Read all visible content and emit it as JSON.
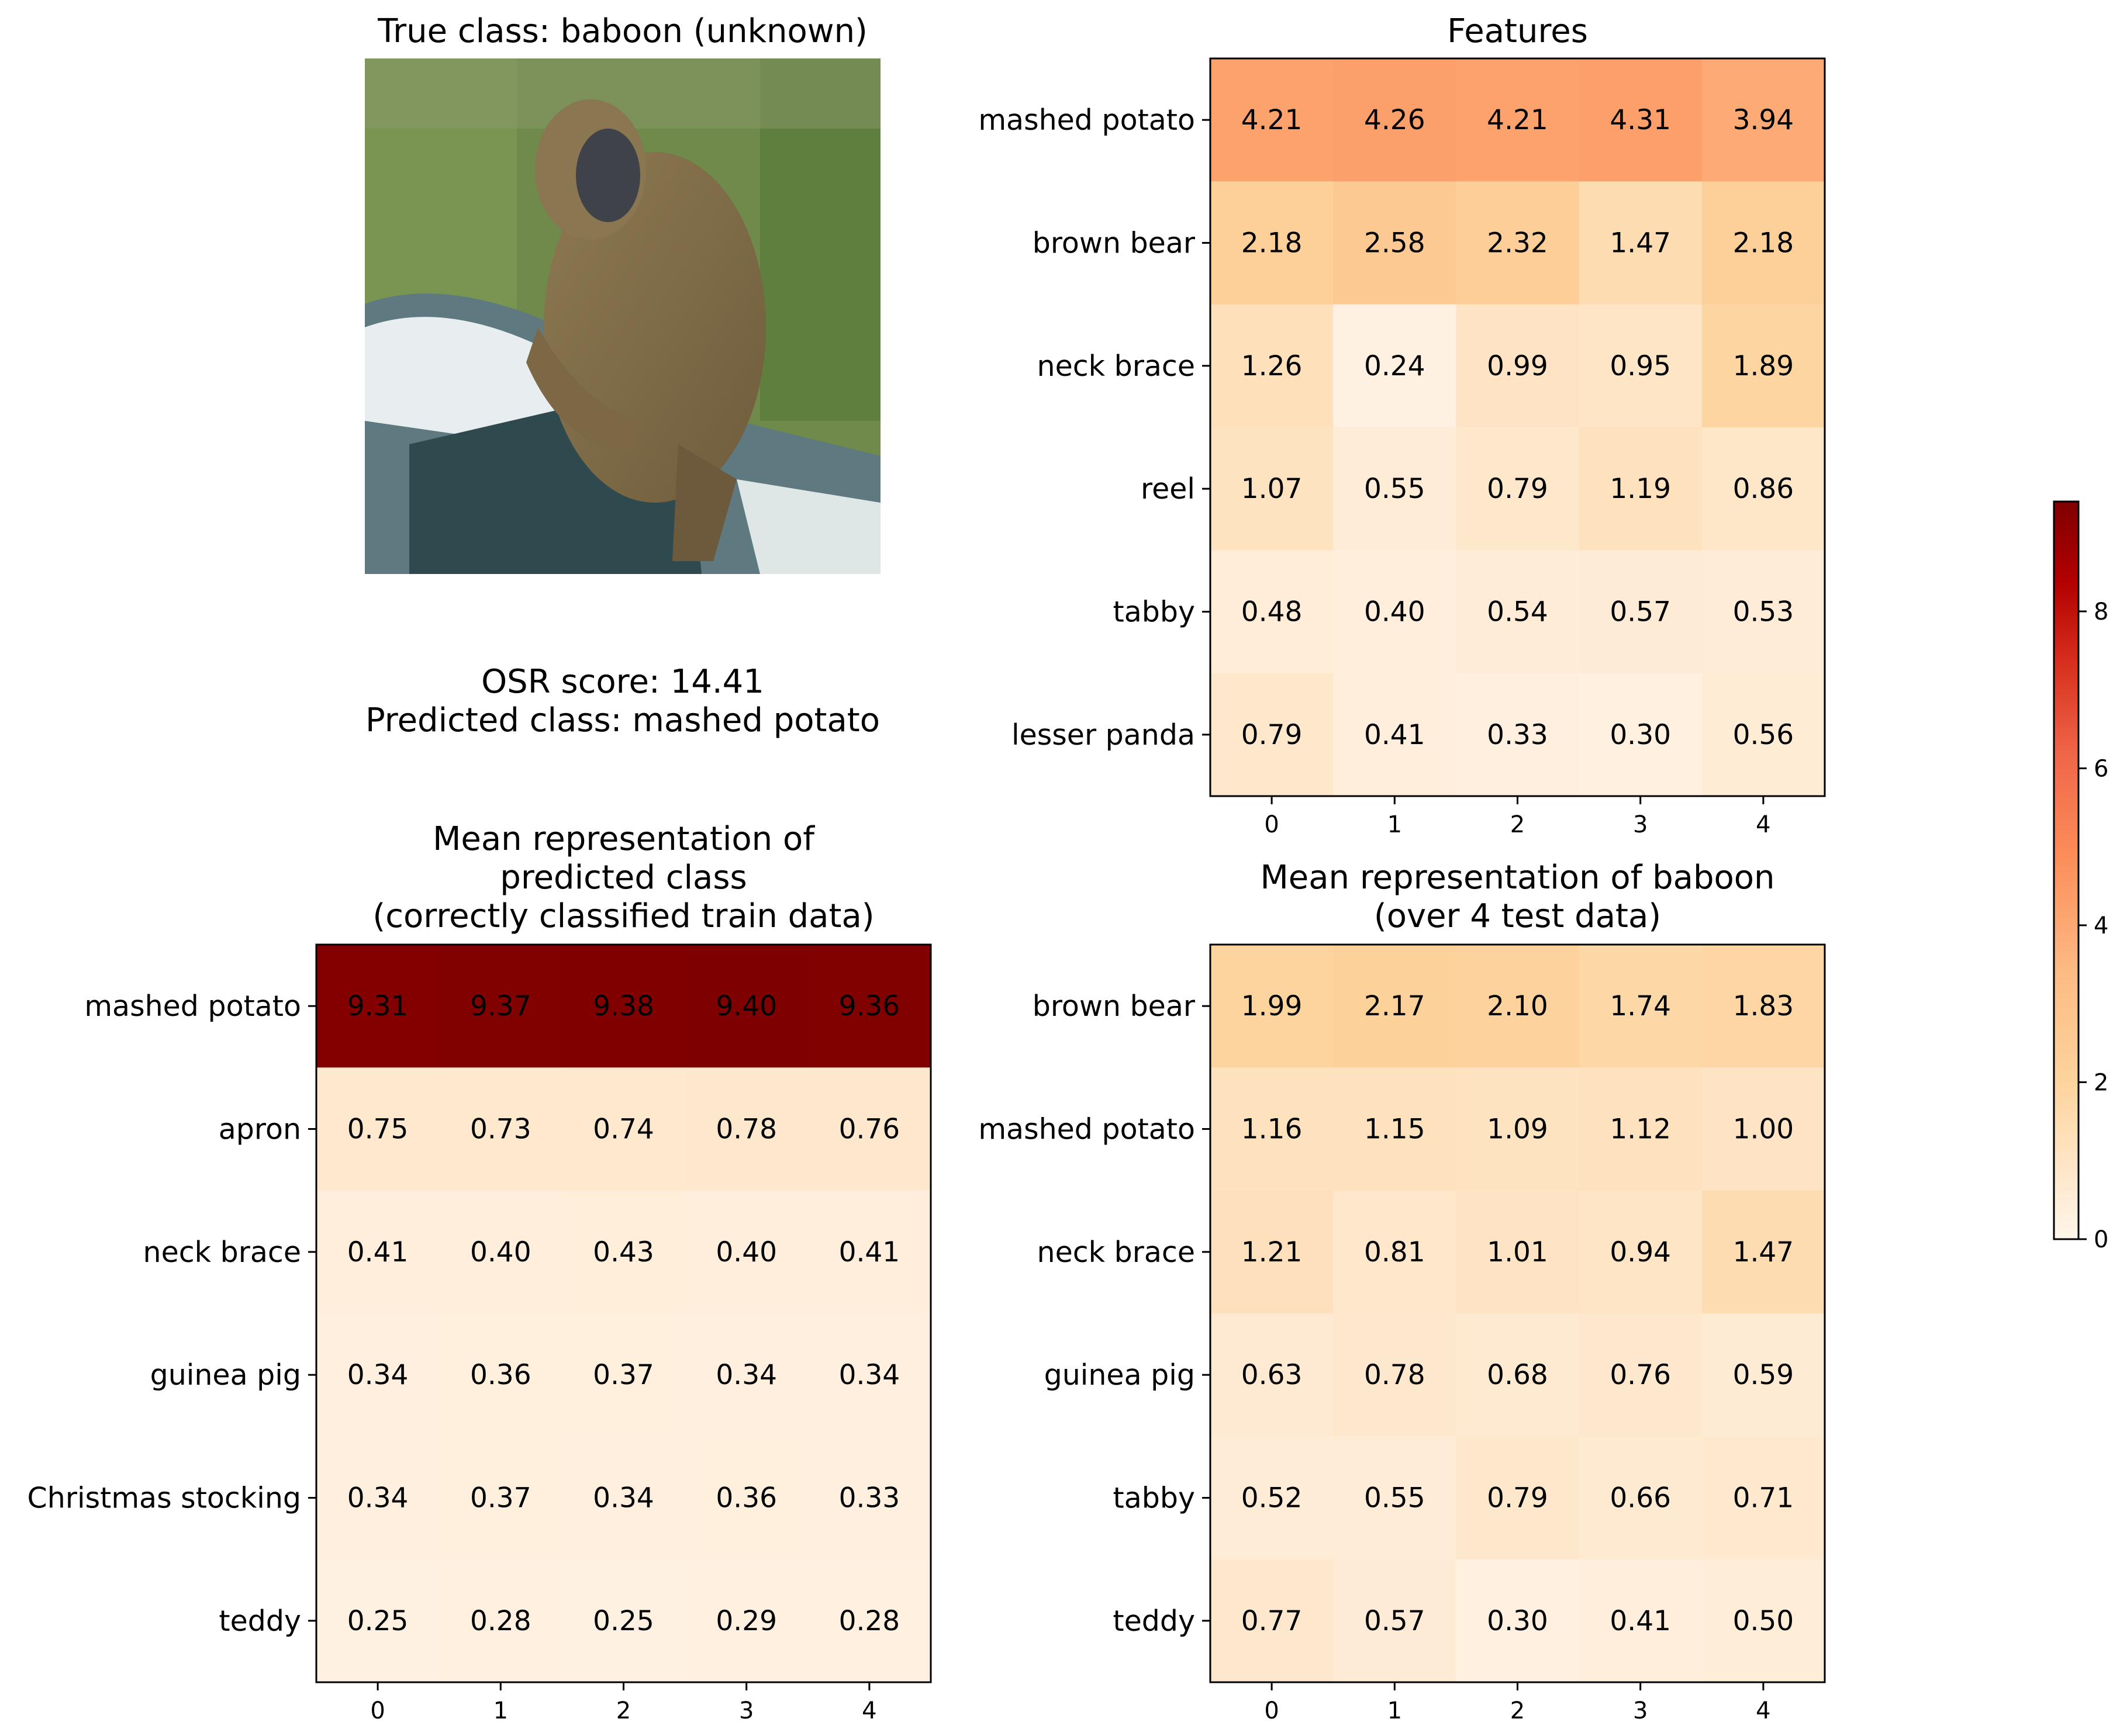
{
  "image_panel": {
    "title": "True class: baboon (unknown)"
  },
  "info": {
    "score_text": "OSR score: 14.41",
    "pred_text": "Predicted class: mashed potato"
  },
  "colorbar": {
    "min": 0,
    "max": 9.4,
    "ticks": [
      "0",
      "2",
      "4",
      "6",
      "8"
    ],
    "colormap": "Oranges-to-dark-red",
    "colors": [
      "#fff5eb",
      "#fdd49e",
      "#fdbb84",
      "#fc8d59",
      "#ef6548",
      "#d7301f",
      "#b30000",
      "#7f0000"
    ]
  },
  "chart_data": [
    {
      "type": "heatmap",
      "title": "Features",
      "xlabel": "",
      "ylabel": "",
      "columns": [
        "0",
        "1",
        "2",
        "3",
        "4"
      ],
      "rows": [
        "mashed potato",
        "brown bear",
        "neck brace",
        "reel",
        "tabby",
        "lesser panda"
      ],
      "values": [
        [
          4.21,
          4.26,
          4.21,
          4.31,
          3.94
        ],
        [
          2.18,
          2.58,
          2.32,
          1.47,
          2.18
        ],
        [
          1.26,
          0.24,
          0.99,
          0.95,
          1.89
        ],
        [
          1.07,
          0.55,
          0.79,
          1.19,
          0.86
        ],
        [
          0.48,
          0.4,
          0.54,
          0.57,
          0.53
        ],
        [
          0.79,
          0.41,
          0.33,
          0.3,
          0.56
        ]
      ]
    },
    {
      "type": "heatmap",
      "title": "Mean representation of\npredicted class\n(correctly classified train data)",
      "xlabel": "",
      "ylabel": "",
      "columns": [
        "0",
        "1",
        "2",
        "3",
        "4"
      ],
      "rows": [
        "mashed potato",
        "apron",
        "neck brace",
        "guinea pig",
        "Christmas stocking",
        "teddy"
      ],
      "values": [
        [
          9.31,
          9.37,
          9.38,
          9.4,
          9.36
        ],
        [
          0.75,
          0.73,
          0.74,
          0.78,
          0.76
        ],
        [
          0.41,
          0.4,
          0.43,
          0.4,
          0.41
        ],
        [
          0.34,
          0.36,
          0.37,
          0.34,
          0.34
        ],
        [
          0.34,
          0.37,
          0.34,
          0.36,
          0.33
        ],
        [
          0.25,
          0.28,
          0.25,
          0.29,
          0.28
        ]
      ]
    },
    {
      "type": "heatmap",
      "title": "Mean representation of baboon\n(over 4 test data)",
      "xlabel": "",
      "ylabel": "",
      "columns": [
        "0",
        "1",
        "2",
        "3",
        "4"
      ],
      "rows": [
        "brown bear",
        "mashed potato",
        "neck brace",
        "guinea pig",
        "tabby",
        "teddy"
      ],
      "values": [
        [
          1.99,
          2.17,
          2.1,
          1.74,
          1.83
        ],
        [
          1.16,
          1.15,
          1.09,
          1.12,
          1.0
        ],
        [
          1.21,
          0.81,
          1.01,
          0.94,
          1.47
        ],
        [
          0.63,
          0.78,
          0.68,
          0.76,
          0.59
        ],
        [
          0.52,
          0.55,
          0.79,
          0.66,
          0.71
        ],
        [
          0.77,
          0.57,
          0.3,
          0.41,
          0.5
        ]
      ]
    }
  ]
}
